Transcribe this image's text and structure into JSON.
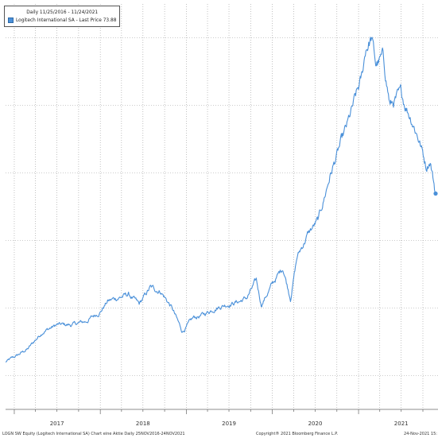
{
  "chart_data": {
    "type": "line",
    "legend": {
      "period_label": "Daily 11/25/2016 - 11/24/2021",
      "series_label": "Logitech International SA - Last Price 73.88"
    },
    "series": [
      {
        "name": "Logitech International SA - Last Price",
        "color": "#4a90d9",
        "last_price": 73.88,
        "x": [
          "2016-11-25",
          "2017-01-15",
          "2017-03-01",
          "2017-05-01",
          "2017-07-01",
          "2017-09-01",
          "2017-11-01",
          "2018-01-01",
          "2018-02-01",
          "2018-03-15",
          "2018-05-01",
          "2018-06-15",
          "2018-08-01",
          "2018-09-15",
          "2018-11-01",
          "2018-12-15",
          "2019-02-01",
          "2019-03-15",
          "2019-05-01",
          "2019-06-15",
          "2019-08-15",
          "2019-09-15",
          "2019-10-25",
          "2019-11-15",
          "2020-01-01",
          "2020-02-15",
          "2020-03-18",
          "2020-04-15",
          "2020-06-01",
          "2020-07-15",
          "2020-09-01",
          "2020-10-15",
          "2020-11-15",
          "2020-12-15",
          "2021-01-15",
          "2021-02-01",
          "2021-02-25",
          "2021-03-15",
          "2021-04-15",
          "2021-05-15",
          "2021-07-01",
          "2021-08-15",
          "2021-09-15",
          "2021-10-15",
          "2021-11-01",
          "2021-11-24"
        ],
        "values": [
          24,
          26,
          28,
          33,
          35,
          35,
          36,
          39,
          42,
          43,
          44,
          41,
          46,
          45,
          40,
          33,
          37,
          38,
          40,
          41,
          42,
          43,
          48,
          41,
          47,
          52,
          43,
          55,
          62,
          66,
          79,
          88,
          94,
          101,
          108,
          117,
          120,
          112,
          114,
          100,
          103,
          96,
          90,
          82,
          84,
          73.88
        ]
      }
    ],
    "xticks": [
      "2017",
      "2018",
      "2019",
      "2020",
      "2021"
    ],
    "ylim": [
      10,
      130
    ],
    "grid": true,
    "legend_position": "top-left",
    "footer": {
      "left": "LOGN SW Equity (Logitech International SA) Chart eine Aktie Daily 25NOV2016-24NOV2021",
      "center": "Copyright® 2021 Bloomberg Finance L.P.",
      "right": "24-Nov-2021 15:"
    }
  }
}
